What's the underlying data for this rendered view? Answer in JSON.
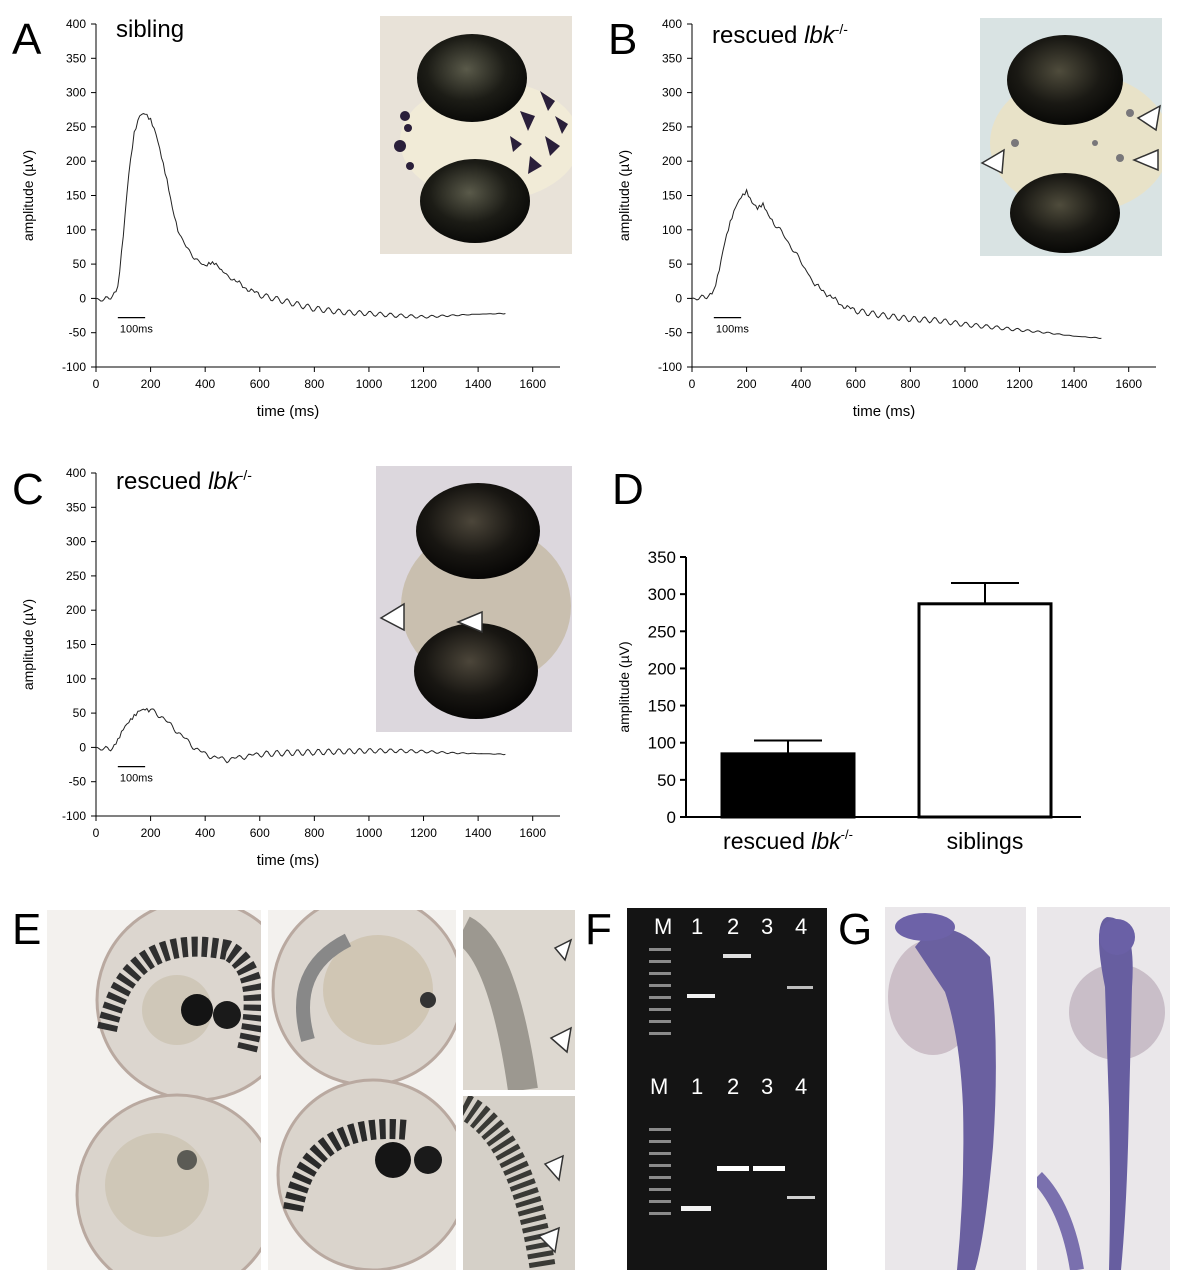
{
  "panels": {
    "A": {
      "letter": "A",
      "title": "sibling"
    },
    "B": {
      "letter": "B",
      "title_main": "rescued ",
      "title_gene": "lbk",
      "title_sup": "-/-"
    },
    "C": {
      "letter": "C",
      "title_main": "rescued ",
      "title_gene": "lbk",
      "title_sup": "-/-"
    },
    "D": {
      "letter": "D"
    },
    "E": {
      "letter": "E"
    },
    "F": {
      "letter": "F"
    },
    "G": {
      "letter": "G"
    }
  },
  "scale_bar_label": "100ms",
  "gel": {
    "top_lanes": [
      "M",
      "1",
      "2",
      "3",
      "4"
    ],
    "bottom_lanes": [
      "M",
      "1",
      "2",
      "3",
      "4"
    ]
  },
  "chart_data": [
    {
      "type": "line",
      "panel": "A",
      "xlabel": "time (ms)",
      "ylabel": "amplitude (µV)",
      "xlim": [
        0,
        1700
      ],
      "ylim": [
        -100,
        400
      ],
      "xticks": [
        0,
        200,
        400,
        600,
        800,
        1000,
        1200,
        1400,
        1600
      ],
      "yticks": [
        -100,
        -50,
        0,
        50,
        100,
        150,
        200,
        250,
        300,
        350,
        400
      ],
      "x": [
        0,
        30,
        60,
        80,
        100,
        120,
        140,
        160,
        180,
        200,
        220,
        240,
        260,
        280,
        300,
        330,
        360,
        400,
        420,
        440,
        460,
        500,
        550,
        600,
        700,
        800,
        900,
        1000,
        1100,
        1200,
        1300,
        1400,
        1500
      ],
      "y": [
        0,
        -3,
        5,
        15,
        90,
        180,
        240,
        268,
        272,
        262,
        240,
        205,
        170,
        130,
        100,
        75,
        60,
        45,
        50,
        50,
        42,
        28,
        15,
        5,
        -5,
        -15,
        -20,
        -22,
        -25,
        -27,
        -25,
        -23,
        -22
      ]
    },
    {
      "type": "line",
      "panel": "B",
      "xlabel": "time (ms)",
      "ylabel": "amplitude (µV)",
      "xlim": [
        0,
        1700
      ],
      "ylim": [
        -100,
        400
      ],
      "xticks": [
        0,
        200,
        400,
        600,
        800,
        1000,
        1200,
        1400,
        1600
      ],
      "yticks": [
        -100,
        -50,
        0,
        50,
        100,
        150,
        200,
        250,
        300,
        350,
        400
      ],
      "x": [
        0,
        30,
        60,
        80,
        100,
        120,
        140,
        160,
        180,
        200,
        220,
        240,
        260,
        280,
        300,
        340,
        380,
        420,
        450,
        500,
        550,
        600,
        700,
        800,
        900,
        1000,
        1100,
        1200,
        1300,
        1400,
        1500
      ],
      "y": [
        0,
        0,
        5,
        10,
        40,
        80,
        110,
        135,
        150,
        158,
        140,
        130,
        135,
        120,
        110,
        90,
        65,
        40,
        20,
        5,
        -10,
        -18,
        -25,
        -30,
        -32,
        -38,
        -42,
        -46,
        -50,
        -55,
        -58
      ]
    },
    {
      "type": "line",
      "panel": "C",
      "xlabel": "time (ms)",
      "ylabel": "amplitude (µV)",
      "xlim": [
        0,
        1700
      ],
      "ylim": [
        -100,
        400
      ],
      "xticks": [
        0,
        200,
        400,
        600,
        800,
        1000,
        1200,
        1400,
        1600
      ],
      "yticks": [
        -100,
        -50,
        0,
        50,
        100,
        150,
        200,
        250,
        300,
        350,
        400
      ],
      "x": [
        0,
        30,
        60,
        80,
        100,
        120,
        140,
        160,
        180,
        200,
        240,
        280,
        320,
        360,
        400,
        440,
        480,
        520,
        560,
        600,
        700,
        800,
        900,
        1000,
        1100,
        1200,
        1300,
        1400,
        1500
      ],
      "y": [
        0,
        -3,
        0,
        10,
        25,
        35,
        45,
        55,
        58,
        55,
        45,
        30,
        15,
        0,
        -10,
        -15,
        -18,
        -15,
        -12,
        -10,
        -8,
        -7,
        -6,
        -5,
        -5,
        -6,
        -8,
        -9,
        -10
      ]
    },
    {
      "type": "bar",
      "panel": "D",
      "categories": [
        "rescued lbk-/-",
        "siblings"
      ],
      "category_labels": [
        {
          "main": "rescued ",
          "gene": "lbk",
          "sup": "-/-"
        },
        {
          "main": "siblings"
        }
      ],
      "values": [
        85,
        287
      ],
      "errors": [
        18,
        28
      ],
      "colors": [
        "#000000",
        "#ffffff"
      ],
      "ylabel": "amplitude (µV)",
      "ylim": [
        0,
        350
      ],
      "yticks": [
        0,
        50,
        100,
        150,
        200,
        250,
        300,
        350
      ]
    }
  ]
}
